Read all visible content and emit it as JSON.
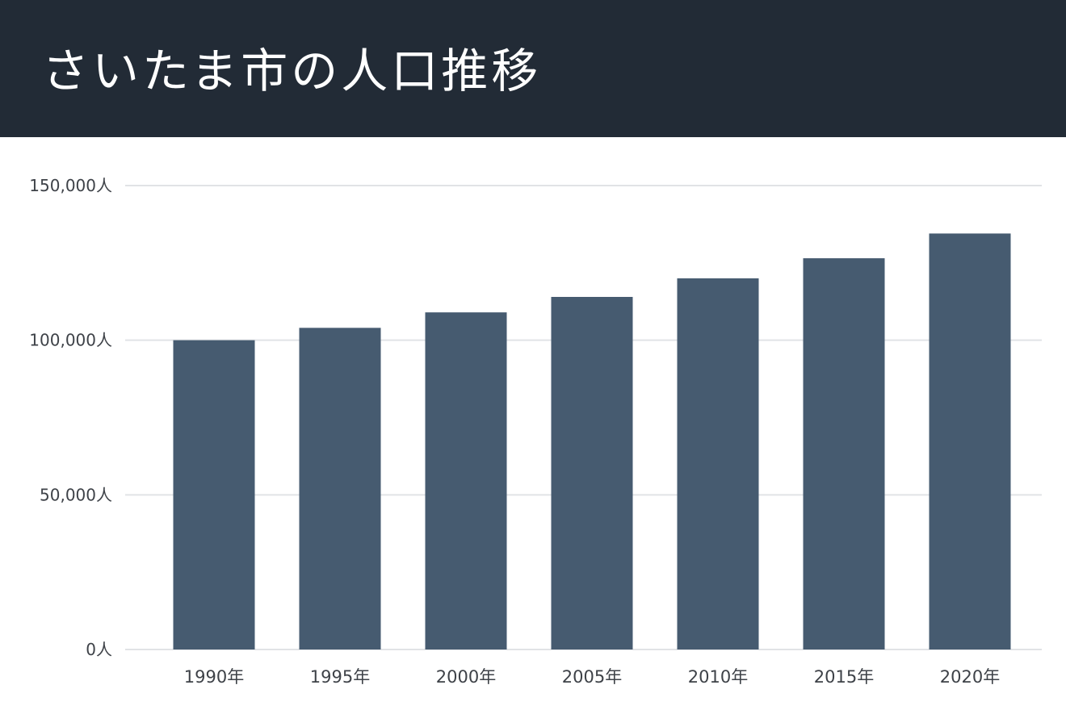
{
  "header": {
    "title": "さいたま市の人口推移"
  },
  "colors": {
    "header_bg": "#222b36",
    "bar": "#465b70",
    "gridline": "#e1e3e6",
    "text": "#3e4248"
  },
  "chart_data": {
    "type": "bar",
    "title": "さいたま市の人口推移",
    "xlabel": "",
    "ylabel": "",
    "categories": [
      "1990年",
      "1995年",
      "2000年",
      "2005年",
      "2010年",
      "2015年",
      "2020年"
    ],
    "series": [
      {
        "values": [
          100000,
          104000,
          109000,
          114000,
          120000,
          126500,
          134500
        ]
      }
    ],
    "ylim": [
      0,
      150000
    ],
    "yticks": [
      0,
      50000,
      100000,
      150000
    ],
    "ytick_labels": [
      "0人",
      "50,000人",
      "100,000人",
      "150,000人"
    ],
    "grid": true,
    "legend": "none"
  }
}
